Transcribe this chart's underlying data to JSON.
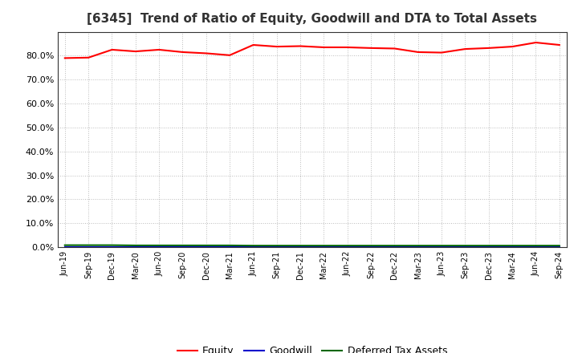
{
  "title": "[6345]  Trend of Ratio of Equity, Goodwill and DTA to Total Assets",
  "x_labels": [
    "Jun-19",
    "Sep-19",
    "Dec-19",
    "Mar-20",
    "Jun-20",
    "Sep-20",
    "Dec-20",
    "Mar-21",
    "Jun-21",
    "Sep-21",
    "Dec-21",
    "Mar-22",
    "Jun-22",
    "Sep-22",
    "Dec-22",
    "Mar-23",
    "Jun-23",
    "Sep-23",
    "Dec-23",
    "Mar-24",
    "Jun-24",
    "Sep-24"
  ],
  "equity": [
    79.0,
    79.2,
    82.5,
    81.8,
    82.5,
    81.5,
    81.0,
    80.2,
    84.5,
    83.8,
    84.0,
    83.5,
    83.5,
    83.2,
    83.0,
    81.5,
    81.3,
    82.8,
    83.2,
    83.8,
    85.5,
    84.5
  ],
  "goodwill": [
    0.0,
    0.0,
    0.0,
    0.0,
    0.0,
    0.0,
    0.0,
    0.0,
    0.0,
    0.0,
    0.0,
    0.0,
    0.0,
    0.0,
    0.0,
    0.0,
    0.0,
    0.0,
    0.0,
    0.0,
    0.0,
    0.0
  ],
  "dta": [
    0.8,
    0.8,
    0.8,
    0.7,
    0.7,
    0.7,
    0.7,
    0.7,
    0.6,
    0.6,
    0.6,
    0.6,
    0.6,
    0.6,
    0.6,
    0.6,
    0.6,
    0.6,
    0.6,
    0.6,
    0.6,
    0.6
  ],
  "equity_color": "#ff0000",
  "goodwill_color": "#0000cc",
  "dta_color": "#006600",
  "ylim": [
    0,
    90
  ],
  "yticks": [
    0,
    10,
    20,
    30,
    40,
    50,
    60,
    70,
    80
  ],
  "background_color": "#ffffff",
  "plot_bg_color": "#ffffff",
  "grid_color": "#bbbbbb",
  "title_fontsize": 11,
  "title_color": "#333333",
  "legend_labels": [
    "Equity",
    "Goodwill",
    "Deferred Tax Assets"
  ]
}
